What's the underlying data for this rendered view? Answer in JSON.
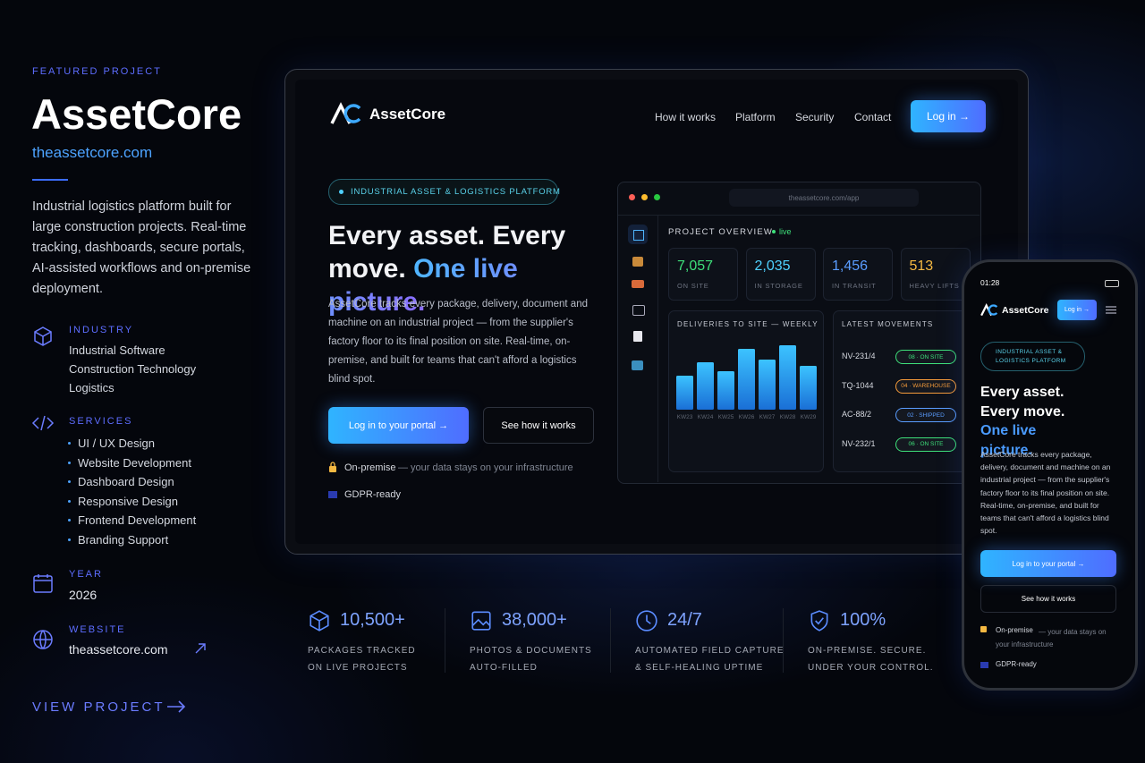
{
  "sidebar": {
    "eyebrow": "FEATURED PROJECT",
    "title": "AssetCore",
    "url": "theassetcore.com",
    "description": "Industrial logistics platform built for large construction projects. Real-time tracking, dashboards, secure portals, AI-assisted workflows and on-premise deployment.",
    "industry": {
      "label": "INDUSTRY",
      "items": [
        "Industrial Software",
        "Construction Technology",
        "Logistics"
      ]
    },
    "services": {
      "label": "SERVICES",
      "items": [
        "UI / UX Design",
        "Website Development",
        "Dashboard Design",
        "Responsive Design",
        "Frontend Development",
        "Branding Support"
      ]
    },
    "year": {
      "label": "YEAR",
      "value": "2026"
    },
    "website": {
      "label": "WEBSITE",
      "value": "theassetcore.com"
    },
    "cta": "VIEW PROJECT"
  },
  "desktop": {
    "brand": "AssetCore",
    "nav": [
      "How it works",
      "Platform",
      "Security",
      "Contact"
    ],
    "login": "Log in →",
    "badge": "INDUSTRIAL ASSET & LOGISTICS PLATFORM",
    "headline": "Every asset. Every move.",
    "headline_accent": "One live picture.",
    "body": "AssetCore tracks every package, delivery, document and machine on an industrial project — from the supplier's factory floor to its final position on site. Real-time, on-premise, and built for teams that can't afford a logistics blind spot.",
    "primary_button": "Log in to your portal →",
    "secondary_button": "See how it works",
    "trust": [
      {
        "strong": "On-premise",
        "text": "— your data stays on your infrastructure"
      },
      {
        "strong": "GDPR-ready"
      }
    ],
    "app": {
      "url": "theassetcore.com/app",
      "overview": "PROJECT OVERVIEW",
      "live": "live",
      "kpis": [
        {
          "value": "7,057",
          "label": "ON SITE",
          "color": "#3ee07a"
        },
        {
          "value": "2,035",
          "label": "IN STORAGE",
          "color": "#4fd1ff"
        },
        {
          "value": "1,456",
          "label": "IN TRANSIT",
          "color": "#5a9dff"
        },
        {
          "value": "513",
          "label": "HEAVY LIFTS",
          "color": "#f5b942"
        }
      ],
      "deliveries": {
        "title": "DELIVERIES TO SITE — WEEKLY",
        "categories": [
          "KW23",
          "KW24",
          "KW25",
          "KW26",
          "KW27",
          "KW28",
          "KW29"
        ],
        "values": [
          38,
          53,
          43,
          68,
          56,
          72,
          49
        ]
      },
      "movements": {
        "title": "LATEST MOVEMENTS",
        "rows": [
          {
            "id": "NV-231/4",
            "status": "08 · ON SITE",
            "color": "#3ee07a"
          },
          {
            "id": "TQ-1044",
            "status": "04 · WAREHOUSE",
            "color": "#f59b3a"
          },
          {
            "id": "AC-88/2",
            "status": "02 · SHIPPED",
            "color": "#5a9dff"
          },
          {
            "id": "NV-232/1",
            "status": "06 · ON SITE",
            "color": "#3ee07a"
          }
        ]
      }
    }
  },
  "stats": [
    {
      "value": "10,500+",
      "label": [
        "PACKAGES TRACKED",
        "ON LIVE PROJECTS"
      ]
    },
    {
      "value": "38,000+",
      "label": [
        "PHOTOS & DOCUMENTS",
        "AUTO-FILLED"
      ]
    },
    {
      "value": "24/7",
      "label": [
        "AUTOMATED FIELD CAPTURE",
        "& SELF-HEALING UPTIME"
      ]
    },
    {
      "value": "100%",
      "label": [
        "ON-PREMISE. SECURE.",
        "UNDER YOUR CONTROL."
      ]
    }
  ],
  "mobile": {
    "time": "01:28",
    "brand": "AssetCore",
    "login": "Log in →",
    "badge": "INDUSTRIAL ASSET & LOGISTICS PLATFORM",
    "headline": "Every asset. Every move.",
    "headline_accent": "One live picture.",
    "body": "AssetCore tracks every package, delivery, document and machine on an industrial project — from the supplier's factory floor to its final position on site. Real-time, on-premise, and built for teams that can't afford a logistics blind spot.",
    "primary_button": "Log in to your portal →",
    "secondary_button": "See how it works",
    "trust": [
      {
        "strong": "On-premise",
        "text": "— your data stays on your infrastructure"
      },
      {
        "strong": "GDPR-ready"
      }
    ]
  }
}
